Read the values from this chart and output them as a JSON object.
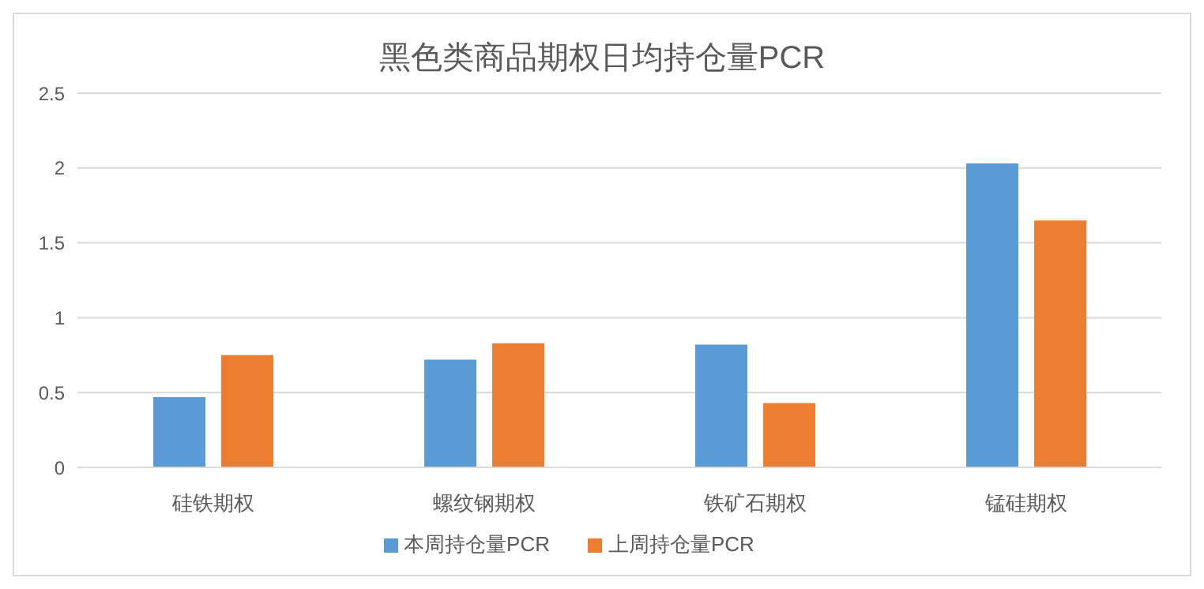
{
  "chart_data": {
    "type": "bar",
    "title": "黑色类商品期权日均持仓量PCR",
    "categories": [
      "硅铁期权",
      "螺纹钢期权",
      "铁矿石期权",
      "锰硅期权"
    ],
    "series": [
      {
        "name": "本周持仓量PCR",
        "color": "#5b9bd5",
        "values": [
          0.47,
          0.72,
          0.82,
          2.03
        ]
      },
      {
        "name": "上周持仓量PCR",
        "color": "#ed7d31",
        "values": [
          0.75,
          0.83,
          0.43,
          1.65
        ]
      }
    ],
    "ylim": [
      0,
      2.5
    ],
    "yticks": [
      0,
      0.5,
      1,
      1.5,
      2,
      2.5
    ],
    "grid": "y",
    "legend": "bottom"
  }
}
